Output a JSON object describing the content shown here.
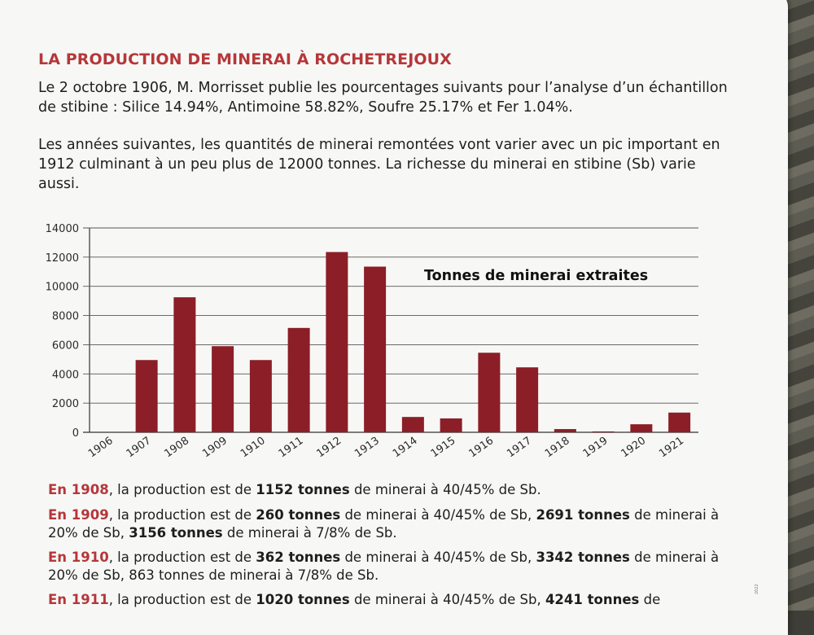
{
  "title": "LA PRODUCTION DE MINERAI À ROCHETREJOUX",
  "intro_1": "Le 2 octobre 1906, M. Morrisset publie les pourcentages suivants pour l’analyse d’un échantillon de stibine : Silice 14.94%, Antimoine 58.82%, Soufre 25.17% et Fer 1.04%.",
  "intro_2": "Les années suivantes, les quantités de minerai remontées vont varier avec un pic important en 1912 culminant à un peu plus de 12000 tonnes. La richesse du minerai en stibine (Sb) varie aussi.",
  "chart_data": {
    "type": "bar",
    "title": "Tonnes de minerai extraites",
    "categories": [
      "1906",
      "1907",
      "1908",
      "1909",
      "1910",
      "1911",
      "1912",
      "1913",
      "1914",
      "1915",
      "1916",
      "1917",
      "1918",
      "1919",
      "1920",
      "1921"
    ],
    "values": [
      0,
      4950,
      9250,
      5900,
      4950,
      7150,
      12350,
      11350,
      1050,
      950,
      5450,
      4450,
      220,
      60,
      550,
      1350
    ],
    "ylim": [
      0,
      14000
    ],
    "yticks": [
      "0",
      "2000",
      "4000",
      "6000",
      "8000",
      "10000",
      "12000",
      "14000"
    ],
    "grid": true,
    "bar_color": "#8b1e27"
  },
  "notes": [
    {
      "parts": [
        {
          "t": "En 1908",
          "s": "year"
        },
        {
          "t": ", la production est de "
        },
        {
          "t": "1152 tonnes",
          "s": "b"
        },
        {
          "t": " de minerai à 40/45% de Sb."
        }
      ]
    },
    {
      "parts": [
        {
          "t": "En 1909",
          "s": "year"
        },
        {
          "t": ", la production est de "
        },
        {
          "t": "260 tonnes",
          "s": "b"
        },
        {
          "t": " de minerai à 40/45% de Sb, "
        },
        {
          "t": "2691 tonnes",
          "s": "b"
        },
        {
          "t": " de minerai à 20% de Sb, "
        },
        {
          "t": "3156 tonnes",
          "s": "b"
        },
        {
          "t": " de minerai à 7/8% de Sb."
        }
      ]
    },
    {
      "parts": [
        {
          "t": "En 1910",
          "s": "year"
        },
        {
          "t": ", la production est de "
        },
        {
          "t": "362 tonnes",
          "s": "b"
        },
        {
          "t": " de minerai à 40/45% de Sb, "
        },
        {
          "t": "3342 tonnes",
          "s": "b"
        },
        {
          "t": " de minerai à 20% de Sb, 863 tonnes de minerai à 7/8% de Sb."
        }
      ]
    },
    {
      "parts": [
        {
          "t": "En 1911",
          "s": "year"
        },
        {
          "t": ", la production est de "
        },
        {
          "t": "1020 tonnes",
          "s": "b"
        },
        {
          "t": " de minerai à 40/45% de Sb, "
        },
        {
          "t": "4241 tonnes",
          "s": "b"
        },
        {
          "t": " de"
        }
      ]
    }
  ],
  "footer_tiny": "2022"
}
